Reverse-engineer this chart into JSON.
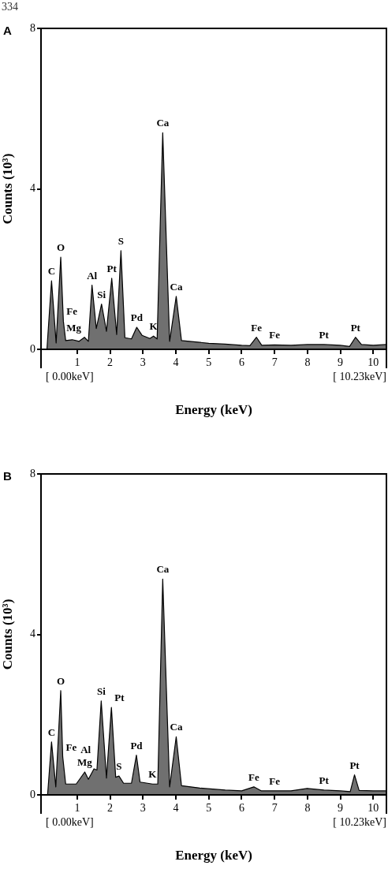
{
  "chart_data": [
    {
      "type": "area",
      "title": "A",
      "subtitle": "334",
      "xlabel": "Energy (keV)",
      "ylabel": "Counts (10³)",
      "xlim": [
        -0.1,
        10.4
      ],
      "ylim": [
        0,
        8
      ],
      "xticks": [
        1,
        2,
        3,
        4,
        5,
        6,
        7,
        8,
        9,
        10
      ],
      "yticks": [
        0,
        4,
        8
      ],
      "series": [
        {
          "color": "#707070",
          "x": [
            0.08,
            0.22,
            0.36,
            0.5,
            0.58,
            0.65,
            0.85,
            1.06,
            1.22,
            1.34,
            1.45,
            1.58,
            1.74,
            1.89,
            2.05,
            2.2,
            2.33,
            2.45,
            2.65,
            2.81,
            2.97,
            3.21,
            3.32,
            3.43,
            3.6,
            3.81,
            4.01,
            4.17,
            4.41,
            5.0,
            5.5,
            6.0,
            6.25,
            6.45,
            6.61,
            7.0,
            7.5,
            8.0,
            8.5,
            9.0,
            9.28,
            9.46,
            9.64,
            10.0,
            10.4
          ],
          "values": [
            0,
            1.71,
            0.16,
            2.3,
            0.7,
            0.22,
            0.24,
            0.2,
            0.3,
            0.2,
            1.6,
            0.52,
            1.13,
            0.45,
            1.77,
            0.37,
            2.46,
            0.29,
            0.26,
            0.55,
            0.35,
            0.27,
            0.33,
            0.26,
            5.4,
            0.2,
            1.32,
            0.22,
            0.2,
            0.15,
            0.13,
            0.1,
            0.09,
            0.3,
            0.1,
            0.11,
            0.1,
            0.12,
            0.12,
            0.1,
            0.07,
            0.3,
            0.12,
            0.1,
            0.12
          ]
        }
      ],
      "annotations": [
        {
          "text": "C",
          "x": 0.22,
          "y": 1.71
        },
        {
          "text": "O",
          "x": 0.5,
          "y": 2.3
        },
        {
          "text": "Fe",
          "x": 0.58,
          "y": 0.7
        },
        {
          "text": "Mg",
          "x": 1.22,
          "y": 0.3
        },
        {
          "text": "Al",
          "x": 1.45,
          "y": 1.6
        },
        {
          "text": "Si",
          "x": 1.74,
          "y": 1.13
        },
        {
          "text": "Pt",
          "x": 2.05,
          "y": 1.77
        },
        {
          "text": "S",
          "x": 2.33,
          "y": 2.46
        },
        {
          "text": "Pd",
          "x": 2.81,
          "y": 0.55
        },
        {
          "text": "K",
          "x": 3.32,
          "y": 0.33
        },
        {
          "text": "Ca",
          "x": 3.6,
          "y": 5.4
        },
        {
          "text": "Ca",
          "x": 4.01,
          "y": 1.32
        },
        {
          "text": "Fe",
          "x": 6.45,
          "y": 0.3
        },
        {
          "text": "Fe",
          "x": 7.0,
          "y": 0.11
        },
        {
          "text": "Pt",
          "x": 8.5,
          "y": 0.12
        },
        {
          "text": "Pt",
          "x": 9.46,
          "y": 0.3
        },
        "[ 0.00keV]",
        "[ 10.23keV]"
      ]
    },
    {
      "type": "area",
      "title": "B",
      "xlabel": "Energy (keV)",
      "ylabel": "Counts (10³)",
      "xlim": [
        -0.1,
        10.4
      ],
      "ylim": [
        0,
        8
      ],
      "xticks": [
        1,
        2,
        3,
        4,
        5,
        6,
        7,
        8,
        9,
        10
      ],
      "yticks": [
        0,
        4,
        8
      ],
      "series": [
        {
          "color": "#707070",
          "x": [
            0.1,
            0.22,
            0.35,
            0.5,
            0.56,
            0.65,
            0.97,
            1.23,
            1.34,
            1.51,
            1.6,
            1.73,
            1.89,
            2.04,
            2.17,
            2.27,
            2.41,
            2.65,
            2.8,
            2.91,
            3.29,
            3.45,
            3.6,
            3.81,
            4.01,
            4.17,
            4.73,
            5.5,
            6.0,
            6.37,
            6.6,
            7.0,
            7.5,
            7.99,
            8.5,
            9.0,
            9.3,
            9.43,
            9.57,
            10.0,
            10.4
          ],
          "values": [
            0,
            1.32,
            0.2,
            2.6,
            0.95,
            0.27,
            0.27,
            0.57,
            0.39,
            0.65,
            0.62,
            2.34,
            0.42,
            2.18,
            0.44,
            0.47,
            0.29,
            0.29,
            0.99,
            0.32,
            0.27,
            0.27,
            5.38,
            0.2,
            1.45,
            0.23,
            0.17,
            0.12,
            0.1,
            0.2,
            0.1,
            0.1,
            0.1,
            0.16,
            0.12,
            0.1,
            0.08,
            0.5,
            0.11,
            0.1,
            0.1
          ]
        }
      ],
      "annotations": [
        {
          "text": "C",
          "x": 0.22,
          "y": 1.32
        },
        {
          "text": "O",
          "x": 0.5,
          "y": 2.6
        },
        {
          "text": "Fe",
          "x": 0.56,
          "y": 0.95
        },
        {
          "text": "Mg",
          "x": 1.23,
          "y": 0.57
        },
        {
          "text": "Al",
          "x": 1.51,
          "y": 0.65
        },
        {
          "text": "Si",
          "x": 1.73,
          "y": 2.34
        },
        {
          "text": "Pt",
          "x": 2.04,
          "y": 2.18
        },
        {
          "text": "S",
          "x": 2.27,
          "y": 0.47
        },
        {
          "text": "Pd",
          "x": 2.8,
          "y": 0.99
        },
        {
          "text": "K",
          "x": 3.29,
          "y": 0.27
        },
        {
          "text": "Ca",
          "x": 3.6,
          "y": 5.38
        },
        {
          "text": "Ca",
          "x": 4.01,
          "y": 1.45
        },
        {
          "text": "Fe",
          "x": 6.37,
          "y": 0.2
        },
        {
          "text": "Fe",
          "x": 7.0,
          "y": 0.1
        },
        {
          "text": "Pt",
          "x": 8.5,
          "y": 0.12
        },
        {
          "text": "Pt",
          "x": 9.43,
          "y": 0.5
        },
        "[ 0.00keV]",
        "[ 10.23keV]"
      ]
    }
  ]
}
